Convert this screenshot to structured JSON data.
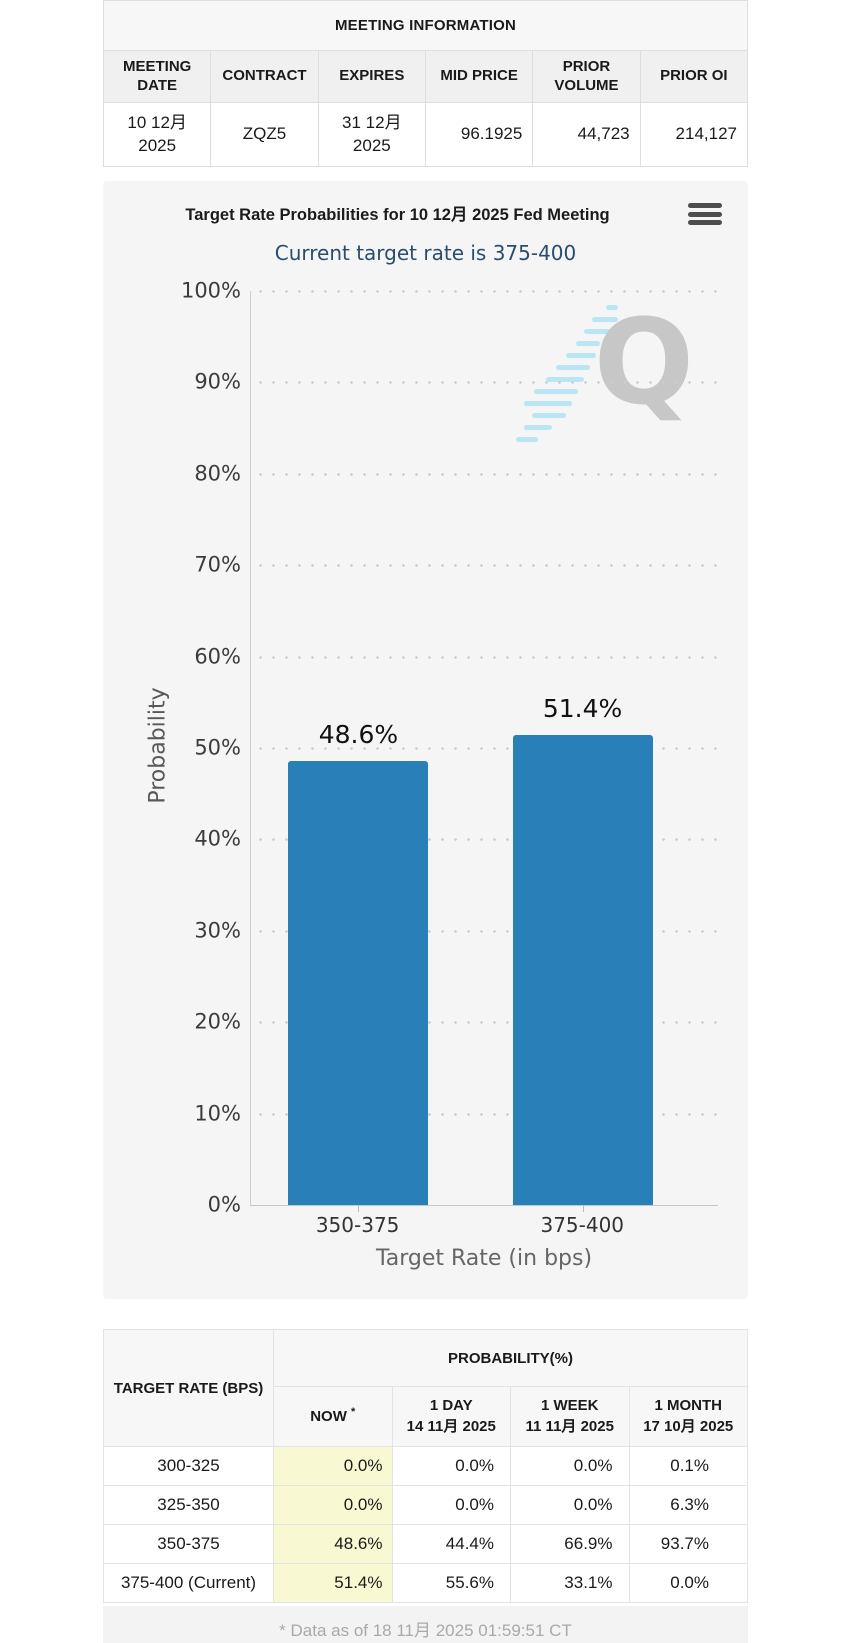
{
  "meeting_info": {
    "title": "MEETING INFORMATION",
    "columns": [
      "MEETING DATE",
      "CONTRACT",
      "EXPIRES",
      "MID PRICE",
      "PRIOR VOLUME",
      "PRIOR OI"
    ],
    "row": [
      "10 12月 2025",
      "ZQZ5",
      "31 12月 2025",
      "96.1925",
      "44,723",
      "214,127"
    ]
  },
  "chart_data": {
    "type": "bar",
    "title": "Target Rate Probabilities for 10 12月 2025 Fed Meeting",
    "subtitle": "Current target rate is 375-400",
    "categories": [
      "350-375",
      "375-400"
    ],
    "values": [
      48.6,
      51.4
    ],
    "value_labels": [
      "48.6%",
      "51.4%"
    ],
    "xlabel": "Target Rate (in bps)",
    "ylabel": "Probability",
    "ylim": [
      0,
      100
    ],
    "ytick_step": 10,
    "ytick_suffix": "%",
    "grid": "dotted-horizontal",
    "legend": "none",
    "bar_color": "#2980b9",
    "watermark_letter": "Q"
  },
  "prob_table": {
    "col1_header": "TARGET RATE (BPS)",
    "group_header": "PROBABILITY(%)",
    "subheaders": [
      {
        "line1": "NOW",
        "asterisk": "*",
        "line2": ""
      },
      {
        "line1": "1 DAY",
        "line2": "14 11月 2025"
      },
      {
        "line1": "1 WEEK",
        "line2": "11 11月 2025"
      },
      {
        "line1": "1 MONTH",
        "line2": "17 10月 2025"
      }
    ],
    "rows": [
      {
        "label": "300-325",
        "now": "0.0%",
        "day": "0.0%",
        "week": "0.0%",
        "month": "0.1%"
      },
      {
        "label": "325-350",
        "now": "0.0%",
        "day": "0.0%",
        "week": "0.0%",
        "month": "6.3%"
      },
      {
        "label": "350-375",
        "now": "48.6%",
        "day": "44.4%",
        "week": "66.9%",
        "month": "93.7%"
      },
      {
        "label": "375-400 (Current)",
        "now": "51.4%",
        "day": "55.6%",
        "week": "33.1%",
        "month": "0.0%"
      }
    ],
    "footnote": "* Data as of 18 11月 2025 01:59:51 CT"
  },
  "colors": {
    "bar": "#2980b9",
    "subtitle_text": "#2a4d6e",
    "now_highlight": "#f8f8d2",
    "panel_bg": "#f5f5f5",
    "watermark_gray": "#c7c7c7",
    "watermark_blue": "#b9e5f6"
  }
}
